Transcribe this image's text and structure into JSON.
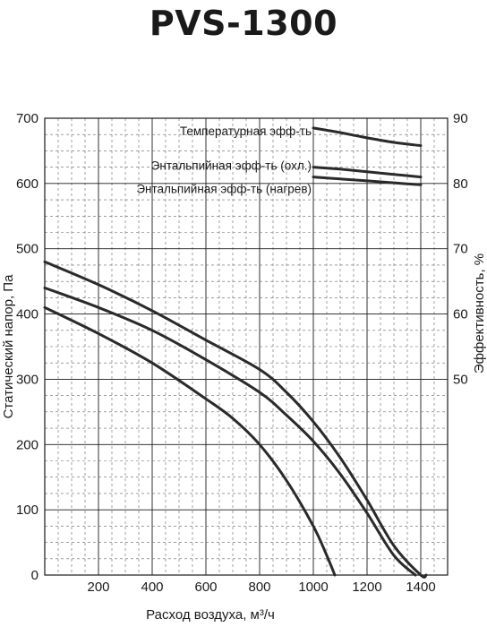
{
  "chart_data": {
    "type": "line",
    "title": "PVS-1300",
    "xlabel": "Расход воздуха, м³/ч",
    "ylabel": "Статический напор, Па",
    "y2label": "Эффективность, %",
    "xlim": [
      0,
      1500
    ],
    "ylim": [
      0,
      700
    ],
    "y2lim": [
      20,
      90
    ],
    "xticks": [
      "200",
      "400",
      "600",
      "800",
      "1000",
      "1200",
      "1400"
    ],
    "yticks": [
      "0",
      "100",
      "200",
      "300",
      "400",
      "500",
      "600",
      "700"
    ],
    "y2ticks": [
      "50",
      "60",
      "70",
      "80",
      "90"
    ],
    "grid": true,
    "pressure_series": [
      {
        "x": [
          0,
          200,
          400,
          600,
          800,
          900,
          1000,
          1100,
          1200,
          1300,
          1400,
          1420
        ],
        "y": [
          480,
          445,
          405,
          360,
          315,
          280,
          235,
          180,
          115,
          45,
          0,
          0
        ]
      },
      {
        "x": [
          0,
          200,
          400,
          600,
          800,
          900,
          1000,
          1100,
          1200,
          1300,
          1380
        ],
        "y": [
          440,
          410,
          375,
          330,
          280,
          245,
          205,
          155,
          95,
          30,
          0
        ]
      },
      {
        "x": [
          0,
          200,
          400,
          600,
          700,
          800,
          900,
          1000,
          1050,
          1080
        ],
        "y": [
          410,
          370,
          325,
          270,
          240,
          200,
          145,
          75,
          30,
          0
        ]
      }
    ],
    "efficiency_series": [
      {
        "name": "Температурная эфф-ть",
        "x": [
          1000,
          1100,
          1200,
          1300,
          1400
        ],
        "y": [
          88.5,
          87.8,
          87.0,
          86.3,
          85.8
        ]
      },
      {
        "name": "Энтальпийная эфф-ть (охл.)",
        "x": [
          1000,
          1100,
          1200,
          1300,
          1400
        ],
        "y": [
          82.5,
          82.2,
          81.8,
          81.4,
          81.0
        ]
      },
      {
        "name": "Энтальпийная эфф-ть (нагрев)",
        "x": [
          1000,
          1100,
          1200,
          1300,
          1400
        ],
        "y": [
          81.0,
          80.7,
          80.4,
          80.1,
          79.8
        ]
      }
    ]
  }
}
